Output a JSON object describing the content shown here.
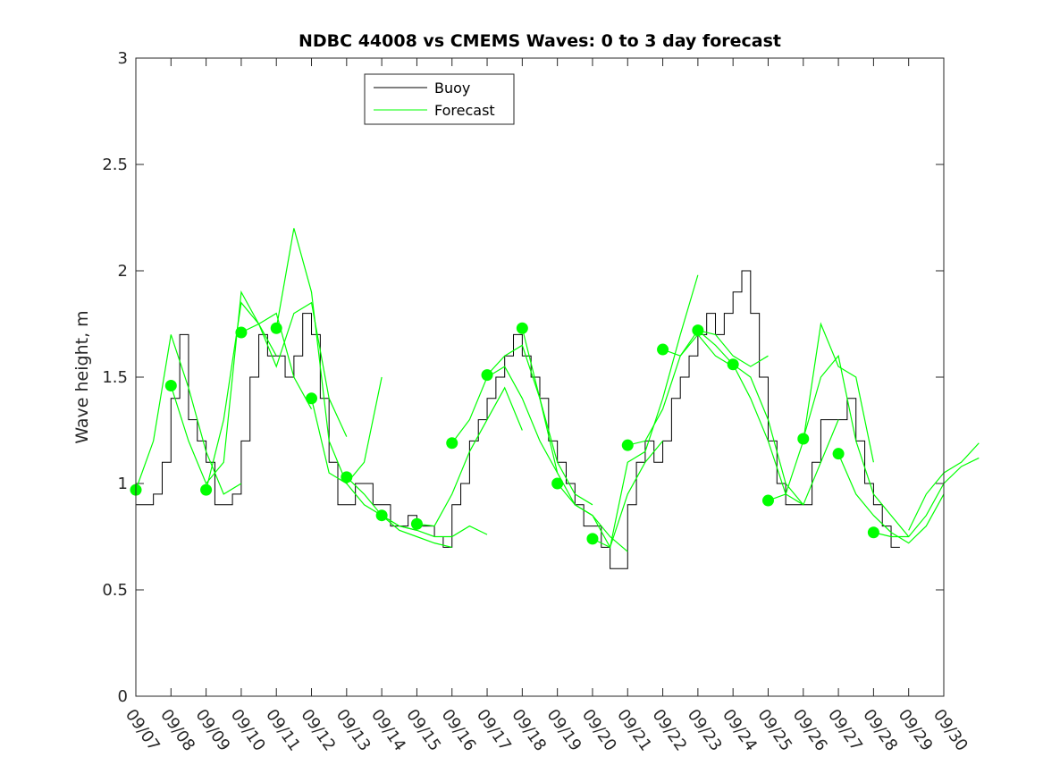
{
  "chart_data": {
    "type": "line",
    "title": "NDBC 44008 vs CMEMS Waves: 0 to 3 day forecast",
    "xlabel": "",
    "ylabel": "Wave height, m",
    "ylim": [
      0,
      3
    ],
    "yticks": [
      0,
      0.5,
      1,
      1.5,
      2,
      2.5,
      3
    ],
    "ytick_labels": [
      "0",
      "0.5",
      "1",
      "1.5",
      "2",
      "2.5",
      "3"
    ],
    "xlim_day_index": [
      0,
      23
    ],
    "xtick_labels": [
      "09/07",
      "09/08",
      "09/09",
      "09/10",
      "09/11",
      "09/12",
      "09/13",
      "09/14",
      "09/15",
      "09/16",
      "09/17",
      "09/18",
      "09/19",
      "09/20",
      "09/21",
      "09/22",
      "09/23",
      "09/24",
      "09/25",
      "09/26",
      "09/27",
      "09/28",
      "09/29",
      "09/30"
    ],
    "legend": {
      "placement": "top-left",
      "entries": [
        {
          "label": "Buoy",
          "color": "#000000"
        },
        {
          "label": "Forecast",
          "color": "#00ff00"
        }
      ]
    },
    "buoy_step_days": 0.25,
    "buoy": [
      0.9,
      0.9,
      0.95,
      1.1,
      1.4,
      1.7,
      1.3,
      1.2,
      1.1,
      0.9,
      0.9,
      0.95,
      1.2,
      1.5,
      1.7,
      1.6,
      1.6,
      1.5,
      1.6,
      1.8,
      1.7,
      1.4,
      1.1,
      0.9,
      0.9,
      1.0,
      1.0,
      0.9,
      0.9,
      0.8,
      0.8,
      0.85,
      0.8,
      0.8,
      0.75,
      0.7,
      0.9,
      1.0,
      1.2,
      1.3,
      1.4,
      1.5,
      1.6,
      1.7,
      1.6,
      1.5,
      1.4,
      1.2,
      1.1,
      1.0,
      0.9,
      0.8,
      0.8,
      0.7,
      0.6,
      0.6,
      0.9,
      1.1,
      1.2,
      1.1,
      1.2,
      1.4,
      1.5,
      1.6,
      1.7,
      1.8,
      1.7,
      1.8,
      1.9,
      2.0,
      1.8,
      1.5,
      1.2,
      1.0,
      0.9,
      0.9,
      0.9,
      1.1,
      1.3,
      1.3,
      1.3,
      1.4,
      1.2,
      1.0,
      0.9,
      0.8,
      0.7
    ],
    "forecast_step_days": 0.5,
    "forecast_runs": [
      {
        "start": 0,
        "values": [
          0.97,
          1.2,
          1.7,
          1.45,
          1.15,
          0.95,
          1.0
        ]
      },
      {
        "start": 1,
        "values": [
          1.46,
          1.2,
          1.0,
          1.1,
          1.9,
          1.75,
          1.6
        ]
      },
      {
        "start": 2,
        "values": [
          0.97,
          1.3,
          1.85,
          1.75,
          1.8,
          1.5,
          1.35
        ]
      },
      {
        "start": 3,
        "values": [
          1.71,
          1.75,
          1.55,
          1.8,
          1.85,
          1.4,
          1.22
        ]
      },
      {
        "start": 4,
        "values": [
          1.73,
          2.2,
          1.9,
          1.2,
          1.0,
          1.1,
          1.5
        ]
      },
      {
        "start": 5,
        "values": [
          1.4,
          1.05,
          1.0,
          0.9,
          0.85,
          0.8,
          0.78
        ]
      },
      {
        "start": 6,
        "values": [
          1.03,
          0.95,
          0.85,
          0.78,
          0.75,
          0.72,
          0.7
        ]
      },
      {
        "start": 7,
        "values": [
          0.85,
          0.8,
          0.78,
          0.75,
          0.75,
          0.8,
          0.76
        ]
      },
      {
        "start": 8,
        "values": [
          0.81,
          0.8,
          0.95,
          1.15,
          1.3,
          1.45,
          1.25
        ]
      },
      {
        "start": 9,
        "values": [
          1.19,
          1.3,
          1.5,
          1.55,
          1.4,
          1.2,
          1.05
        ]
      },
      {
        "start": 10,
        "values": [
          1.51,
          1.6,
          1.65,
          1.4,
          1.1,
          0.95,
          0.9
        ]
      },
      {
        "start": 11,
        "values": [
          1.73,
          1.4,
          1.05,
          0.9,
          0.85,
          0.75,
          0.68
        ]
      },
      {
        "start": 12,
        "values": [
          1.0,
          0.9,
          0.85,
          0.7,
          0.95,
          1.1,
          1.2
        ]
      },
      {
        "start": 13,
        "values": [
          0.74,
          0.7,
          1.1,
          1.15,
          1.4,
          1.7,
          1.98
        ]
      },
      {
        "start": 14,
        "values": [
          1.18,
          1.2,
          1.35,
          1.6,
          1.7,
          1.6,
          1.55
        ]
      },
      {
        "start": 15,
        "values": [
          1.63,
          1.6,
          1.72,
          1.7,
          1.6,
          1.55,
          1.6
        ]
      },
      {
        "start": 16,
        "values": [
          1.72,
          1.65,
          1.56,
          1.5,
          1.3,
          1.0,
          0.9
        ]
      },
      {
        "start": 17,
        "values": [
          1.56,
          1.4,
          1.2,
          0.95,
          0.9,
          1.1,
          1.3
        ]
      },
      {
        "start": 18,
        "values": [
          0.92,
          0.95,
          1.2,
          1.75,
          1.55,
          1.5,
          1.1
        ]
      },
      {
        "start": 19,
        "values": [
          1.21,
          1.5,
          1.6,
          1.2,
          0.95,
          0.85,
          0.75
        ]
      },
      {
        "start": 20,
        "values": [
          1.14,
          0.95,
          0.85,
          0.77,
          0.72,
          0.8,
          0.95
        ]
      },
      {
        "start": 21,
        "values": [
          0.77,
          0.75,
          0.75,
          0.85,
          1.0,
          1.08,
          1.12
        ]
      },
      {
        "start": 22,
        "values": [
          0.78,
          0.95,
          1.05,
          1.1,
          1.19
        ]
      }
    ],
    "forecast_markers": [
      0.97,
      1.46,
      0.97,
      1.71,
      1.73,
      1.4,
      1.03,
      0.85,
      0.81,
      1.19,
      1.51,
      1.73,
      1.0,
      0.74,
      1.18,
      1.63,
      1.72,
      1.56,
      0.92,
      1.21,
      1.14,
      0.77
    ]
  }
}
